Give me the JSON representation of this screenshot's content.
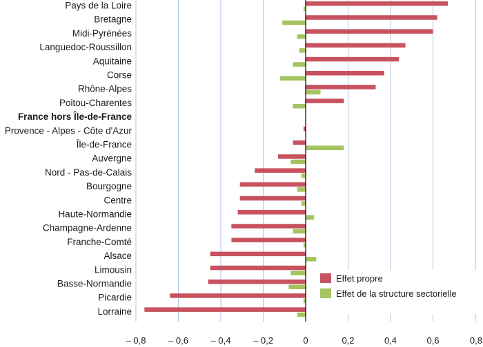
{
  "chart_data": {
    "type": "bar",
    "orientation": "horizontal",
    "categories": [
      "Pays de la Loire",
      "Bretagne",
      "Midi-Pyrénées",
      "Languedoc-Roussillon",
      "Aquitaine",
      "Corse",
      "Rhône-Alpes",
      "Poitou-Charentes",
      "France hors Île-de-France",
      "Provence - Alpes - Côte d'Azur",
      "Île-de-France",
      "Auvergne",
      "Nord - Pas-de-Calais",
      "Bourgogne",
      "Centre",
      "Haute-Normandie",
      "Champagne-Ardenne",
      "Franche-Comté",
      "Alsace",
      "Limousin",
      "Basse-Normandie",
      "Picardie",
      "Lorraine"
    ],
    "bold_categories": [
      "France hors Île-de-France"
    ],
    "series": [
      {
        "name": "Effet propre",
        "color": "#c8525f",
        "values": [
          0.67,
          0.62,
          0.6,
          0.47,
          0.44,
          0.37,
          0.33,
          0.18,
          0.0,
          -0.01,
          -0.06,
          -0.13,
          -0.24,
          -0.31,
          -0.31,
          -0.32,
          -0.35,
          -0.35,
          -0.45,
          -0.45,
          -0.46,
          -0.64,
          -0.76
        ]
      },
      {
        "name": "Effet de la structure sectorielle",
        "color": "#a3c460",
        "values": [
          -0.01,
          -0.11,
          -0.04,
          -0.03,
          -0.06,
          -0.12,
          0.07,
          -0.06,
          0.0,
          0.0,
          0.18,
          -0.07,
          -0.02,
          -0.04,
          -0.02,
          0.04,
          -0.06,
          -0.01,
          0.05,
          -0.07,
          -0.08,
          -0.01,
          -0.04
        ]
      }
    ],
    "xlim": [
      -0.8,
      0.8
    ],
    "xticks": [
      -0.8,
      -0.6,
      -0.4,
      -0.2,
      0,
      0.2,
      0.4,
      0.6,
      0.8
    ],
    "xtick_labels": [
      "– 0,8",
      "– 0,6",
      "– 0,4",
      "– 0,2",
      "0",
      "0,2",
      "0,4",
      "0,6",
      "0,8"
    ],
    "grid": true,
    "legend_position": "bottom-right",
    "zero_line_color": "#000000",
    "grid_color": "#aec6e6"
  }
}
